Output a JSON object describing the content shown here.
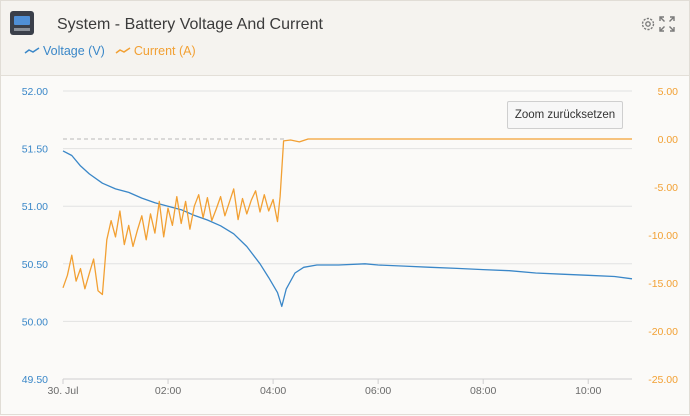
{
  "header": {
    "title": "System - Battery Voltage And Current",
    "settings_icon": "gear-icon",
    "expand_icon": "expand-icon"
  },
  "legend": [
    {
      "label": "Voltage (V)",
      "color": "#3a87c8"
    },
    {
      "label": "Current (A)",
      "color": "#f2a033"
    }
  ],
  "zoom_button": "Zoom zurücksetzen",
  "colors": {
    "voltage": "#3a87c8",
    "current": "#f2a033",
    "grid": "#e2e2e2",
    "zero_line": "#b8b8b8"
  },
  "chart_data": {
    "type": "line",
    "x_tick_labels": [
      "30. Jul",
      "02:00",
      "04:00",
      "06:00",
      "08:00",
      "10:00"
    ],
    "x_range": [
      "00:00",
      "10:50"
    ],
    "left_axis": {
      "ticks": [
        "52.00",
        "51.50",
        "51.00",
        "50.50",
        "50.00",
        "49.50"
      ],
      "range": [
        49.5,
        52.0
      ],
      "color": "#3a87c8"
    },
    "right_axis": {
      "ticks": [
        "5.00",
        "0.00",
        "-5.00",
        "-10.00",
        "-15.00",
        "-20.00",
        "-25.00"
      ],
      "range": [
        -25,
        5
      ],
      "color": "#f2a033"
    },
    "reference_line": {
      "axis": "right",
      "value": 0,
      "style": "dashed",
      "x_end": "04:15"
    },
    "series": [
      {
        "name": "Voltage (V)",
        "axis": "left",
        "points": [
          [
            "00:00",
            51.48
          ],
          [
            "00:10",
            51.44
          ],
          [
            "00:20",
            51.35
          ],
          [
            "00:30",
            51.28
          ],
          [
            "00:45",
            51.2
          ],
          [
            "01:00",
            51.15
          ],
          [
            "01:15",
            51.12
          ],
          [
            "01:30",
            51.07
          ],
          [
            "01:45",
            51.03
          ],
          [
            "02:00",
            51.0
          ],
          [
            "02:15",
            50.97
          ],
          [
            "02:30",
            50.92
          ],
          [
            "02:45",
            50.88
          ],
          [
            "03:00",
            50.83
          ],
          [
            "03:15",
            50.76
          ],
          [
            "03:30",
            50.65
          ],
          [
            "03:45",
            50.5
          ],
          [
            "03:55",
            50.38
          ],
          [
            "04:05",
            50.25
          ],
          [
            "04:10",
            50.13
          ],
          [
            "04:15",
            50.28
          ],
          [
            "04:25",
            50.42
          ],
          [
            "04:35",
            50.47
          ],
          [
            "04:50",
            50.49
          ],
          [
            "05:15",
            50.49
          ],
          [
            "05:45",
            50.5
          ],
          [
            "06:00",
            50.49
          ],
          [
            "06:30",
            50.48
          ],
          [
            "07:00",
            50.47
          ],
          [
            "07:30",
            50.46
          ],
          [
            "08:00",
            50.45
          ],
          [
            "08:30",
            50.44
          ],
          [
            "09:00",
            50.42
          ],
          [
            "09:30",
            50.41
          ],
          [
            "10:00",
            50.4
          ],
          [
            "10:30",
            50.39
          ],
          [
            "10:50",
            50.37
          ]
        ]
      },
      {
        "name": "Current (A)",
        "axis": "right",
        "points": [
          [
            "00:00",
            -15.5
          ],
          [
            "00:05",
            -14.2
          ],
          [
            "00:10",
            -12.1
          ],
          [
            "00:15",
            -14.8
          ],
          [
            "00:20",
            -13.5
          ],
          [
            "00:25",
            -15.6
          ],
          [
            "00:30",
            -14.0
          ],
          [
            "00:35",
            -12.5
          ],
          [
            "00:40",
            -15.8
          ],
          [
            "00:45",
            -16.2
          ],
          [
            "00:50",
            -10.5
          ],
          [
            "00:55",
            -8.5
          ],
          [
            "01:00",
            -10.2
          ],
          [
            "01:05",
            -7.5
          ],
          [
            "01:10",
            -11.0
          ],
          [
            "01:15",
            -9.0
          ],
          [
            "01:20",
            -11.2
          ],
          [
            "01:25",
            -9.5
          ],
          [
            "01:30",
            -8.0
          ],
          [
            "01:35",
            -10.5
          ],
          [
            "01:40",
            -7.8
          ],
          [
            "01:45",
            -9.8
          ],
          [
            "01:50",
            -6.5
          ],
          [
            "01:55",
            -10.2
          ],
          [
            "02:00",
            -7.2
          ],
          [
            "02:05",
            -9.0
          ],
          [
            "02:10",
            -6.0
          ],
          [
            "02:15",
            -8.8
          ],
          [
            "02:20",
            -6.5
          ],
          [
            "02:25",
            -9.4
          ],
          [
            "02:30",
            -7.0
          ],
          [
            "02:35",
            -5.8
          ],
          [
            "02:40",
            -8.2
          ],
          [
            "02:45",
            -6.1
          ],
          [
            "02:50",
            -8.5
          ],
          [
            "02:55",
            -7.3
          ],
          [
            "03:00",
            -6.0
          ],
          [
            "03:05",
            -8.0
          ],
          [
            "03:10",
            -6.6
          ],
          [
            "03:15",
            -5.2
          ],
          [
            "03:20",
            -8.4
          ],
          [
            "03:25",
            -6.2
          ],
          [
            "03:30",
            -7.8
          ],
          [
            "03:35",
            -6.4
          ],
          [
            "03:40",
            -5.4
          ],
          [
            "03:45",
            -7.6
          ],
          [
            "03:50",
            -5.8
          ],
          [
            "03:55",
            -7.5
          ],
          [
            "04:00",
            -6.3
          ],
          [
            "04:05",
            -8.6
          ],
          [
            "04:08",
            -6.0
          ],
          [
            "04:12",
            -0.2
          ],
          [
            "04:20",
            -0.1
          ],
          [
            "04:30",
            -0.3
          ],
          [
            "04:40",
            0.0
          ],
          [
            "05:30",
            0.0
          ],
          [
            "07:00",
            0.0
          ],
          [
            "09:00",
            0.0
          ],
          [
            "10:50",
            0.0
          ]
        ]
      }
    ]
  }
}
